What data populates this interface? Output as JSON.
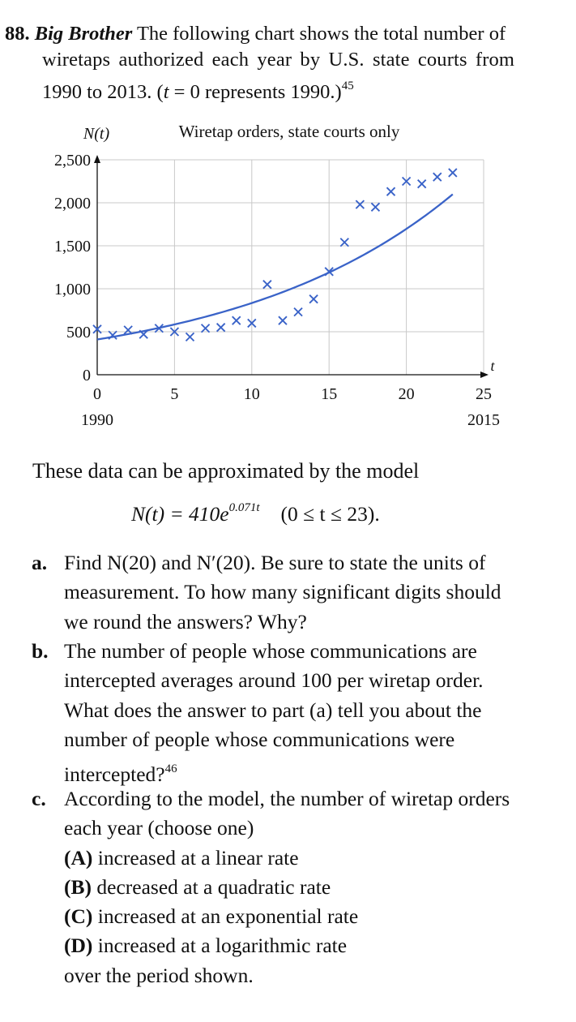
{
  "problem": {
    "number": "88.",
    "title": "Big Brother",
    "line1": "The following chart shows the total number of",
    "line2": "wiretaps authorized each year by U.S. state courts from",
    "line3_a": "1990 to 2013. (",
    "line3_t": "t",
    "line3_b": " = 0 represents 1990.)",
    "footnote": "45"
  },
  "chart_data": {
    "type": "scatter",
    "title": "Wiretap orders, state courts only",
    "ylabel": "N(t)",
    "xlabel": "t",
    "xlim": [
      0,
      25
    ],
    "ylim": [
      0,
      2500
    ],
    "x_ticks": [
      "0",
      "5",
      "10",
      "15",
      "20",
      "25"
    ],
    "y_ticks": [
      "0",
      "500",
      "1,000",
      "1,500",
      "2,000",
      "2,500"
    ],
    "x_tick_sublabels": {
      "0": "1990",
      "25": "2015"
    },
    "grid": true,
    "accent_color": "#3a63c8",
    "series": [
      {
        "x": [
          0,
          1,
          2,
          3,
          4,
          5,
          6,
          7,
          8,
          9,
          10,
          11,
          12,
          13,
          14,
          15,
          16,
          17,
          18,
          19,
          20,
          21,
          22,
          23
        ],
        "values": [
          530,
          460,
          520,
          470,
          540,
          500,
          440,
          540,
          550,
          630,
          600,
          1050,
          630,
          730,
          880,
          1200,
          1540,
          1980,
          1950,
          2130,
          2250,
          2220,
          2300,
          2350
        ]
      }
    ],
    "model_curve": {
      "a": 410,
      "k": 0.071,
      "t_min": 0,
      "t_max": 23
    }
  },
  "model": {
    "intro": "These data can be approximated by the model",
    "lhs": "N(t) = 410e",
    "exponent": "0.071t",
    "domain": "(0 ≤ t ≤ 23)."
  },
  "parts": {
    "a": {
      "label": "a.",
      "lines": [
        "Find N(20) and N′(20). Be sure to state the units of",
        "measurement. To how many significant digits should",
        "we round the answers? Why?"
      ]
    },
    "b": {
      "label": "b.",
      "lines": [
        "The number of people whose communications are",
        "intercepted averages around 100 per wiretap order.",
        "What does the answer to part (a) tell you about the",
        "number of people whose communications were",
        "intercepted?"
      ],
      "footnote": "46"
    },
    "c": {
      "label": "c.",
      "lines": [
        "According to the model, the number of wiretap orders",
        "each year (choose one)"
      ],
      "choices": [
        {
          "letter": "(A)",
          "text": " increased at a linear rate"
        },
        {
          "letter": "(B)",
          "text": " decreased at a quadratic rate"
        },
        {
          "letter": "(C)",
          "text": " increased at an exponential rate"
        },
        {
          "letter": "(D)",
          "text": " increased at a logarithmic rate"
        }
      ],
      "closing": "over the period shown."
    }
  }
}
